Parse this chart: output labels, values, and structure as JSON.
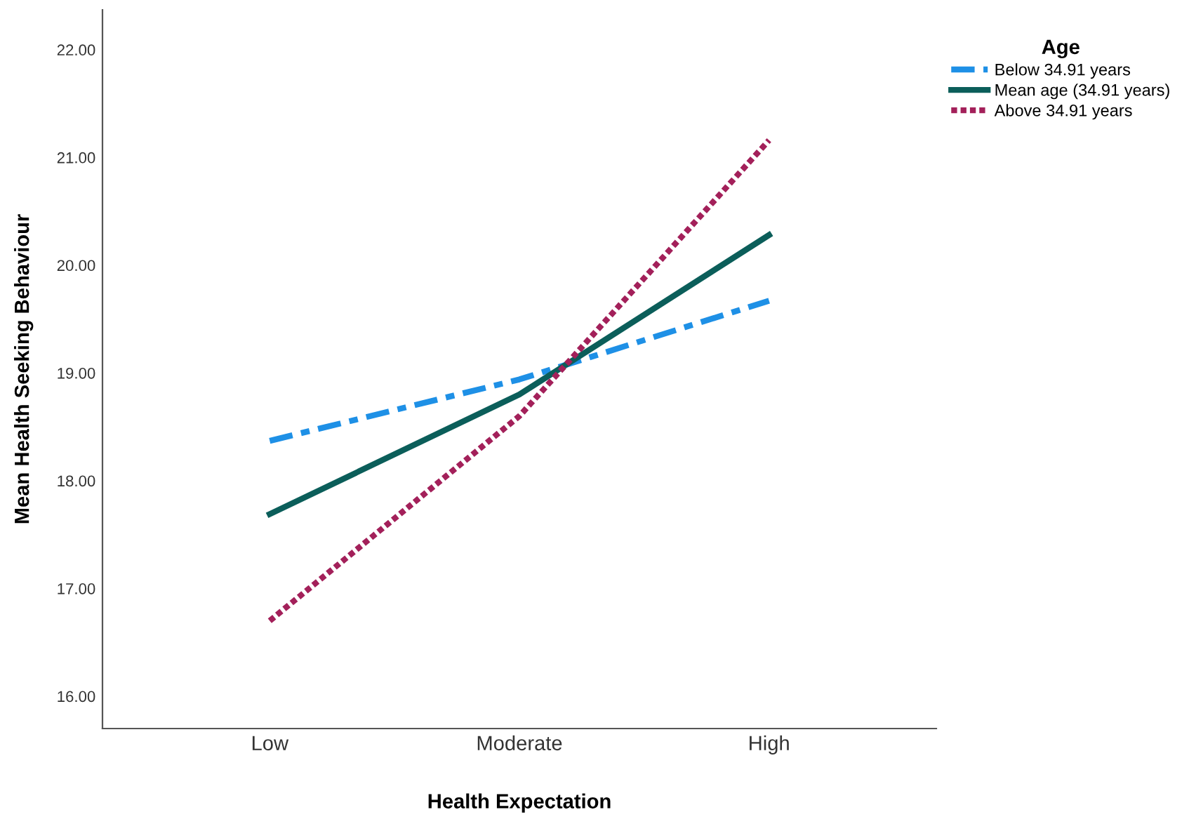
{
  "chart_data": {
    "type": "line",
    "xlabel": "Health Expectation",
    "ylabel": "Mean Health Seeking Behaviour",
    "legend_title": "Age",
    "legend": "top right",
    "grid": false,
    "marker": "none",
    "categories": [
      "Low",
      "Moderate",
      "High"
    ],
    "ylim": [
      15.7,
      22.37
    ],
    "yticks": [
      {
        "value": 16,
        "label": "16.00"
      },
      {
        "value": 17,
        "label": "17.00"
      },
      {
        "value": 18,
        "label": "18.00"
      },
      {
        "value": 19,
        "label": "19.00"
      },
      {
        "value": 20,
        "label": "20.00"
      },
      {
        "value": 21,
        "label": "21.00"
      },
      {
        "value": 22,
        "label": "22.00"
      }
    ],
    "series": [
      {
        "name": "Below 34.91 years",
        "color": "#1e90e6",
        "line_style": "dashed",
        "values": [
          18.37,
          18.94,
          19.67
        ]
      },
      {
        "name": "Mean age (34.91 years)",
        "color": "#0b5e5a",
        "line_style": "solid",
        "values": [
          17.69,
          18.8,
          20.28
        ]
      },
      {
        "name": "Above 34.91 years",
        "color": "#a3205a",
        "line_style": "dotted",
        "values": [
          16.7,
          18.6,
          21.16
        ]
      }
    ]
  }
}
